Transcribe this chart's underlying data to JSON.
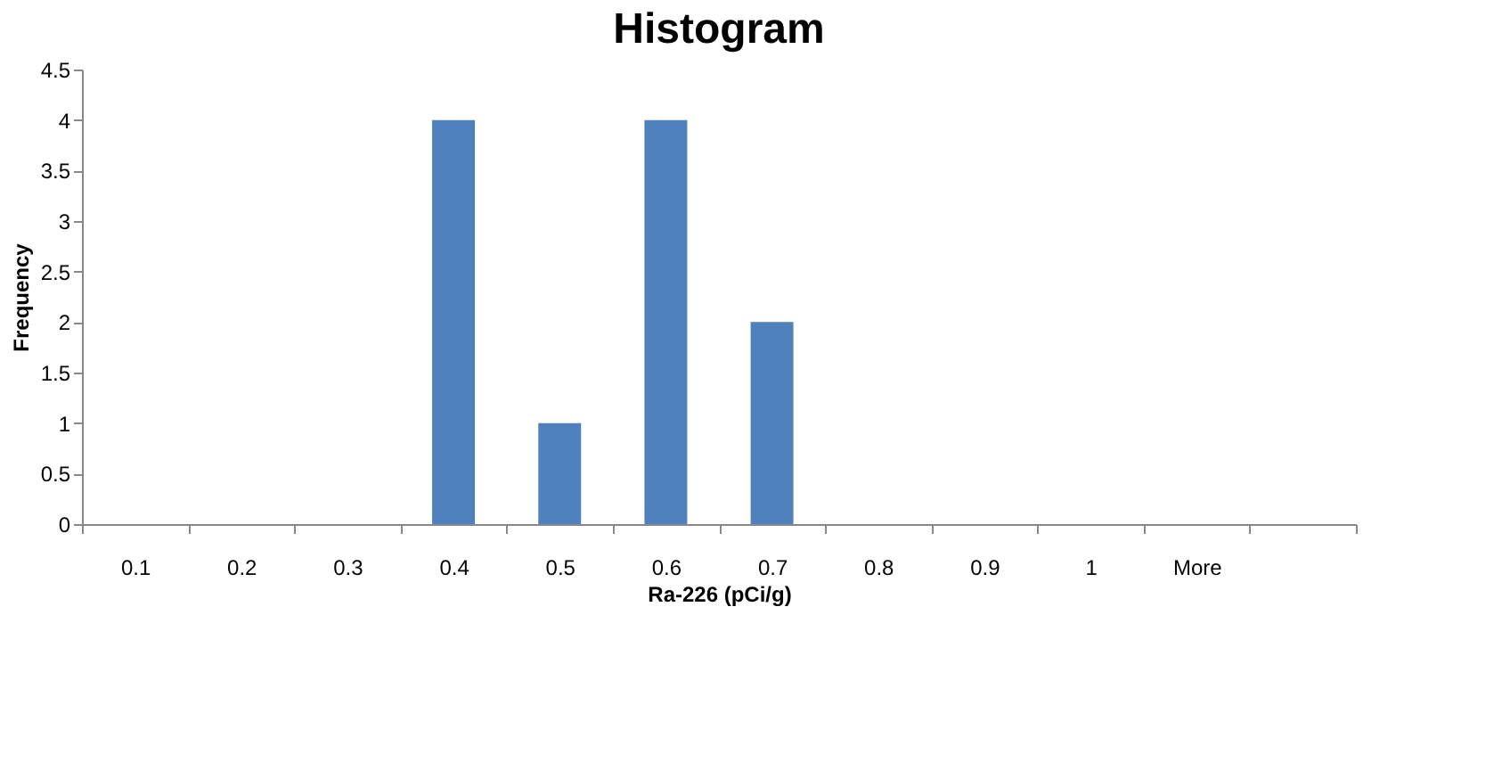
{
  "chart_data": {
    "type": "bar",
    "title": "Histogram",
    "xlabel": "Ra-226 (pCi/g)",
    "ylabel": "Frequency",
    "categories": [
      "0.1",
      "0.2",
      "0.3",
      "0.4",
      "0.5",
      "0.6",
      "0.7",
      "0.8",
      "0.9",
      "1",
      "More",
      null
    ],
    "values": [
      0,
      0,
      0,
      4,
      1,
      4,
      2,
      0,
      0,
      0,
      0,
      0
    ],
    "color": "#4f81bd",
    "ylim": [
      0,
      4.5
    ],
    "yticks": [
      0,
      0.5,
      1,
      1.5,
      2,
      2.5,
      3,
      3.5,
      4,
      4.5
    ],
    "grid": false
  }
}
